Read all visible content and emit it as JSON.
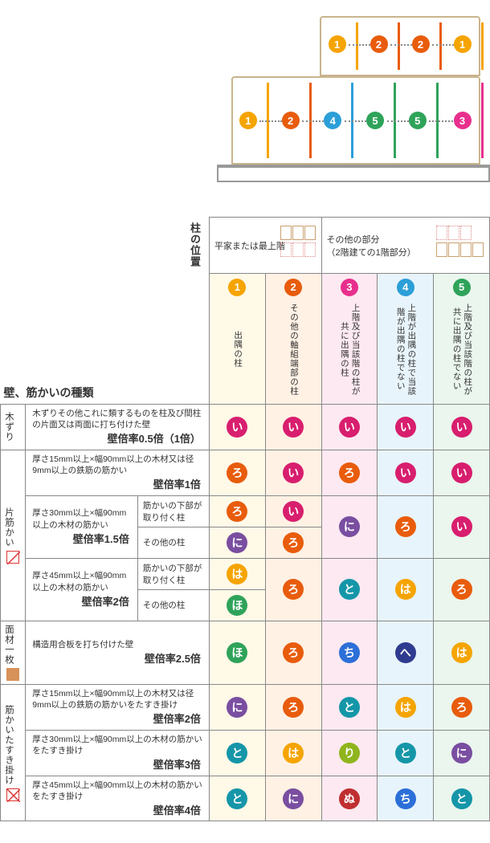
{
  "colors": {
    "col1_badge_bg": "#f5a400",
    "col1_badge_fg": "#ffffff",
    "col2_badge_bg": "#e85c0c",
    "col2_badge_fg": "#ffffff",
    "col3_badge_bg": "#e82f8e",
    "col3_badge_fg": "#ffffff",
    "col4_badge_bg": "#2c9fd8",
    "col4_badge_fg": "#ffffff",
    "col5_badge_bg": "#2fa35a",
    "col5_badge_fg": "#ffffff",
    "kana_i": "#d81e6e",
    "kana_ro": "#e85c0c",
    "kana_ha": "#f5a400",
    "kana_ni": "#7a4ea0",
    "kana_ho": "#2fa35a",
    "kana_he": "#2f3b8f",
    "kana_to": "#1596a8",
    "kana_chi": "#2c6fd8",
    "kana_ri": "#8fb51e",
    "kana_nu": "#c02f2f",
    "wood_frame": "#c9b48e",
    "pillar": {
      "1": "#f5a400",
      "2": "#e85c0c",
      "3": "#e82f8e",
      "4": "#2c9fd8",
      "5": "#2fa35a"
    }
  },
  "building": {
    "floor2_pillars": [
      {
        "n": "1",
        "left_pct": 22
      },
      {
        "n": "2",
        "left_pct": 48
      },
      {
        "n": "2",
        "left_pct": 74
      },
      {
        "n": "1",
        "left_pct": 100
      }
    ],
    "floor1_pillars": [
      {
        "n": "1",
        "left_pct": 14
      },
      {
        "n": "2",
        "left_pct": 31
      },
      {
        "n": "4",
        "left_pct": 48
      },
      {
        "n": "5",
        "left_pct": 65
      },
      {
        "n": "5",
        "left_pct": 82
      },
      {
        "n": "3",
        "left_pct": 100
      }
    ]
  },
  "header": {
    "col_pos_label": "柱の位置",
    "side_title": "壁、筋かいの種類",
    "group_a": "平家または最上階",
    "group_b_l1": "その他の部分",
    "group_b_l2": "（2階建ての1階部分）",
    "cols": [
      {
        "num": "1",
        "label": "出隅の柱"
      },
      {
        "num": "2",
        "label": "その他の軸組端部の柱"
      },
      {
        "num": "3",
        "label": "上階及び当該階の柱が共に出隅の柱"
      },
      {
        "num": "4",
        "label": "上階が出隅の柱で当該階が出隅の柱でない"
      },
      {
        "num": "5",
        "label": "上階及び当該階の柱が共に出隅の柱でない"
      }
    ]
  },
  "categories": {
    "kiz": {
      "label": "木ずり"
    },
    "kata": {
      "label": "片筋かい",
      "icon": "diag"
    },
    "men": {
      "label": "面材一枚",
      "icon": "solid"
    },
    "tas": {
      "label": "筋かいたすき掛け",
      "icon": "cross"
    }
  },
  "rows": [
    {
      "cat": "kiz",
      "spec": "木ずりその他これに類するものを柱及び間柱の片面又は両面に打ち付けた壁",
      "rate": "壁倍率0.5倍（1倍）",
      "vals": [
        "i",
        "i",
        "i",
        "i",
        "i"
      ]
    },
    {
      "cat": "kata",
      "spec": "厚さ15mm以上×幅90mm以上の木材又は径9mm以上の鉄筋の筋かい",
      "rate": "壁倍率1倍",
      "vals": [
        "ro",
        "i",
        "ro",
        "i",
        "i"
      ]
    },
    {
      "cat": "kata",
      "spec": "厚さ30mm以上×幅90mm以上の木材の筋かい",
      "rate": "壁倍率1.5倍",
      "sub": "筋かいの下部が取り付く柱",
      "vals": [
        "ro",
        "i",
        null,
        null,
        null
      ]
    },
    {
      "cat": "kata",
      "sub": "その他の柱",
      "vals": [
        "ni",
        "ro",
        "ni",
        "ro",
        "i"
      ],
      "merge_345_from_above": true
    },
    {
      "cat": "kata",
      "spec": "厚さ45mm以上×幅90mm以上の木材の筋かい",
      "rate": "壁倍率2倍",
      "sub": "筋かいの下部が取り付く柱",
      "vals": [
        "ha",
        null,
        null,
        null,
        null
      ]
    },
    {
      "cat": "kata",
      "sub": "その他の柱",
      "vals": [
        "ho",
        "ro",
        "to",
        "ha",
        "ro"
      ],
      "merge_2345_from_above": true
    },
    {
      "cat": "men",
      "spec": "構造用合板を打ち付けた壁",
      "rate": "壁倍率2.5倍",
      "vals": [
        "ho",
        "ro",
        "chi",
        "he",
        "ha"
      ]
    },
    {
      "cat": "tas",
      "spec": "厚さ15mm以上×幅90mm以上の木材又は径9mm以上の鉄筋の筋かいをたすき掛け",
      "rate": "壁倍率2倍",
      "vals": [
        "ni",
        "ro",
        "to",
        "ha",
        "ro"
      ]
    },
    {
      "cat": "tas",
      "spec": "厚さ30mm以上×幅90mm以上の木材の筋かいをたすき掛け",
      "rate": "壁倍率3倍",
      "vals": [
        "to",
        "ha",
        "ri",
        "to",
        "ni"
      ]
    },
    {
      "cat": "tas",
      "spec": "厚さ45mm以上×幅90mm以上の木材の筋かいをたすき掛け",
      "rate": "壁倍率4倍",
      "vals": [
        "to",
        "ni",
        "nu",
        "chi",
        "to"
      ]
    }
  ],
  "kana_glyph": {
    "i": "い",
    "ro": "ろ",
    "ha": "は",
    "ni": "に",
    "ho": "ほ",
    "he": "へ",
    "to": "と",
    "chi": "ち",
    "ri": "り",
    "nu": "ぬ"
  }
}
